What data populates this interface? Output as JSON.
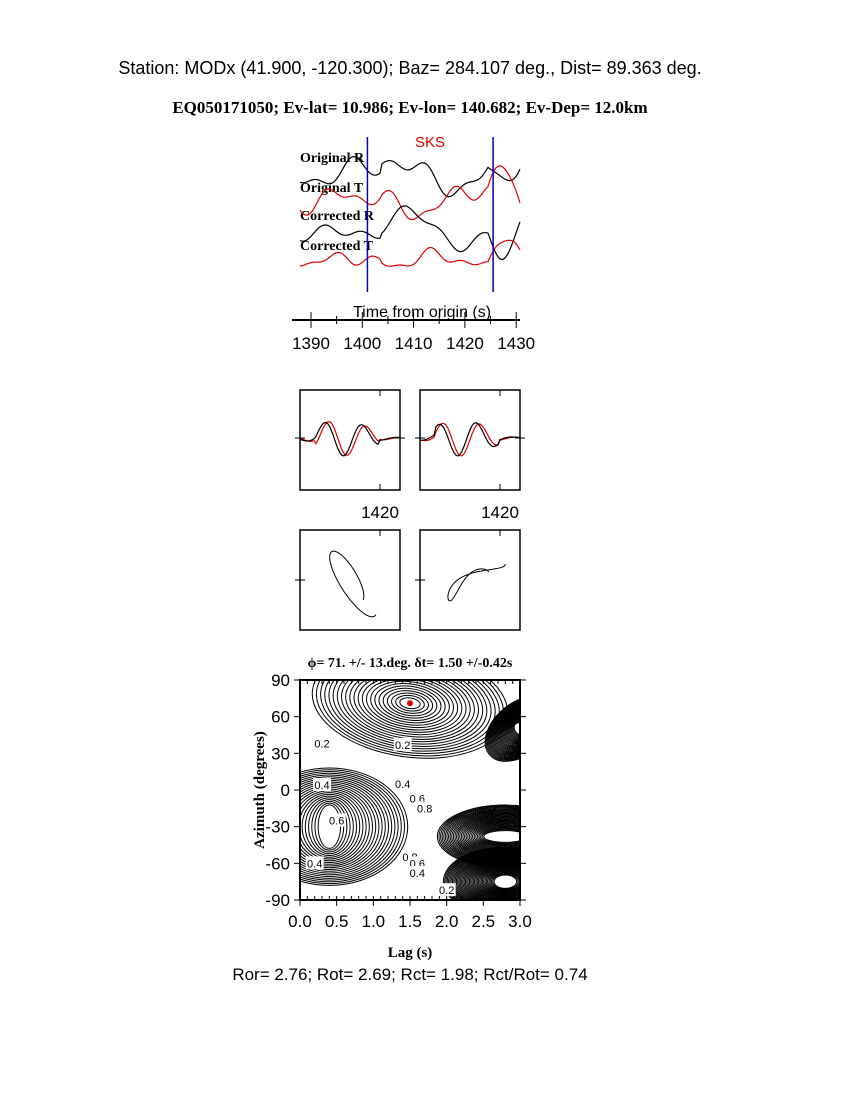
{
  "header": {
    "station_line": "Station: MODx (41.900, -120.300); Baz=  284.107 deg., Dist=   89.363 deg.",
    "event_line": "EQ050171050; Ev-lat=  10.986; Ev-lon= 140.682; Ev-Dep= 12.0km"
  },
  "footer": "Ror= 2.76; Rot= 2.69; Rct= 1.98; Rct/Rot= 0.74",
  "colors": {
    "black": "#000000",
    "red": "#e00000",
    "blue": "#0000cc"
  },
  "chart_data": [
    {
      "type": "line",
      "phase_label": "SKS",
      "xlabel": "Time from origin (s)",
      "xlim": [
        1386,
        1431
      ],
      "xticks": [
        "1390",
        "1400",
        "1410",
        "1420",
        "1430"
      ],
      "window_markers": [
        1401,
        1425.5
      ],
      "series": [
        {
          "name": "Original R",
          "color": "#000000"
        },
        {
          "name": "Original T",
          "color": "#e00000"
        },
        {
          "name": "Corrected R",
          "color": "#000000"
        },
        {
          "name": "Corrected T",
          "color": "#e00000"
        }
      ]
    },
    {
      "type": "line",
      "panels": [
        "waveform-overlay-original",
        "waveform-overlay-corrected",
        "particle-motion-original",
        "particle-motion-corrected"
      ],
      "xtick_label": "1420"
    },
    {
      "type": "contour",
      "title": "ϕ= 71. +/- 13.deg. δt= 1.50 +/-0.42s",
      "xlabel": "Lag (s)",
      "ylabel": "Azimuth (degrees)",
      "xlim": [
        0,
        3
      ],
      "ylim": [
        -90,
        90
      ],
      "xticks": [
        "0.0",
        "0.5",
        "1.0",
        "1.5",
        "2.0",
        "2.5",
        "3.0"
      ],
      "yticks": [
        "90",
        "60",
        "30",
        "0",
        "-30",
        "-60",
        "-90"
      ],
      "minimum": {
        "lag": 1.5,
        "azimuth": 71
      },
      "contour_labels": [
        "0.2",
        "0.2",
        "0.4",
        "0.4",
        "0.6",
        "0.6",
        "0.8",
        "0.8",
        "0.6",
        "0.4",
        "0.4",
        "0.2"
      ]
    }
  ]
}
